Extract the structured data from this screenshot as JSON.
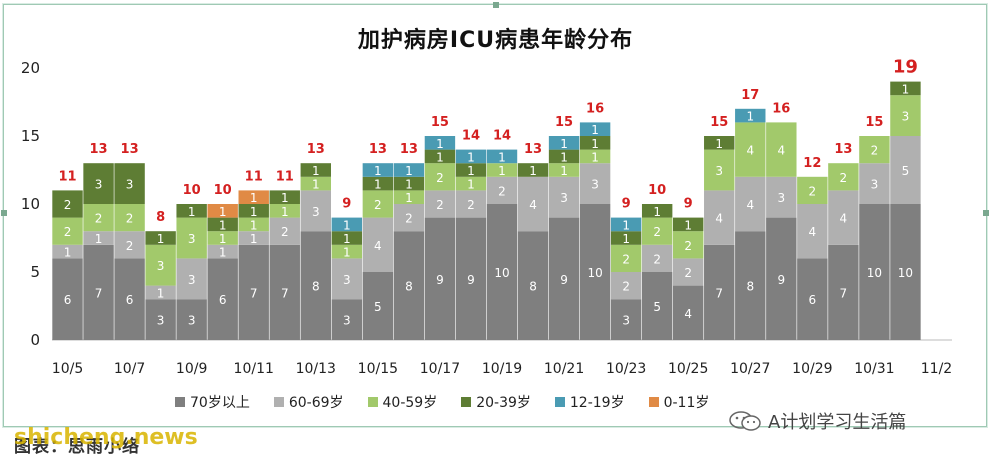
{
  "chart_data": {
    "type": "bar",
    "title": "加护病房ICU病患年龄分布",
    "categories": [
      "10/5",
      "10/6",
      "10/7",
      "10/8",
      "10/9",
      "10/10",
      "10/11",
      "10/12",
      "10/13",
      "10/14",
      "10/15",
      "10/16",
      "10/17",
      "10/18",
      "10/19",
      "10/20",
      "10/21",
      "10/22",
      "10/23",
      "10/24",
      "10/25",
      "10/26",
      "10/27",
      "10/28",
      "10/29",
      "10/30",
      "10/31",
      "11/1"
    ],
    "x_tick_labels": [
      "10/5",
      "10/7",
      "10/9",
      "10/11",
      "10/13",
      "10/15",
      "10/17",
      "10/19",
      "10/21",
      "10/23",
      "10/25",
      "10/27",
      "10/29",
      "10/31",
      "11/2"
    ],
    "y_ticks": [
      0,
      5,
      10,
      15,
      20
    ],
    "ylim": [
      0,
      20
    ],
    "series": [
      {
        "name": "70岁以上",
        "color": "#7f7f7f",
        "values": [
          6,
          7,
          6,
          3,
          3,
          6,
          7,
          7,
          8,
          3,
          5,
          8,
          9,
          9,
          10,
          8,
          9,
          10,
          3,
          5,
          4,
          7,
          8,
          9,
          6,
          7,
          10,
          10
        ]
      },
      {
        "name": "60-69岁",
        "color": "#b0b0b0",
        "values": [
          1,
          1,
          2,
          1,
          3,
          1,
          1,
          2,
          3,
          3,
          4,
          2,
          2,
          2,
          2,
          4,
          3,
          3,
          2,
          2,
          2,
          4,
          4,
          3,
          4,
          4,
          3,
          5
        ]
      },
      {
        "name": "40-59岁",
        "color": "#a2c96b",
        "values": [
          2,
          2,
          2,
          3,
          3,
          1,
          1,
          1,
          1,
          1,
          2,
          1,
          2,
          1,
          1,
          0,
          1,
          1,
          2,
          2,
          2,
          3,
          4,
          4,
          2,
          2,
          2,
          3
        ]
      },
      {
        "name": "20-39岁",
        "color": "#5e7d34",
        "values": [
          2,
          3,
          3,
          1,
          1,
          1,
          1,
          1,
          1,
          1,
          1,
          1,
          1,
          1,
          0,
          1,
          1,
          1,
          1,
          1,
          1,
          1,
          0,
          0,
          0,
          0,
          0,
          1
        ]
      },
      {
        "name": "12-19岁",
        "color": "#4a9bb3",
        "values": [
          0,
          0,
          0,
          0,
          0,
          0,
          0,
          0,
          0,
          1,
          1,
          1,
          1,
          1,
          1,
          0,
          1,
          1,
          1,
          0,
          0,
          0,
          1,
          0,
          0,
          0,
          0,
          0
        ]
      },
      {
        "name": "0-11岁",
        "color": "#e08a45",
        "values": [
          0,
          0,
          0,
          0,
          0,
          1,
          1,
          0,
          0,
          0,
          0,
          0,
          0,
          0,
          0,
          0,
          0,
          0,
          0,
          0,
          0,
          0,
          0,
          0,
          0,
          0,
          0,
          0
        ]
      }
    ],
    "totals": [
      11,
      13,
      13,
      8,
      10,
      10,
      11,
      11,
      13,
      9,
      13,
      13,
      15,
      14,
      14,
      13,
      15,
      16,
      9,
      10,
      9,
      15,
      17,
      16,
      12,
      13,
      15,
      19
    ],
    "totals_color": "#d42020",
    "grid": false,
    "legend": "bottom"
  },
  "footer": {
    "caption": "图表：思雨小络",
    "watermark": "shicheng.news",
    "account": "A计划学习生活篇"
  }
}
